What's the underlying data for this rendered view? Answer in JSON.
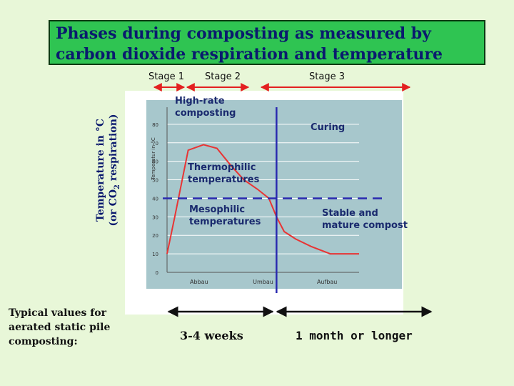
{
  "title": "Phases during composting as measured by carbon dioxide respiration and temperature",
  "stages": [
    "Stage 1",
    "Stage 2",
    "Stage 3"
  ],
  "y_axis_label": {
    "line1": "Temperature in °C",
    "line2_prefix": "(or CO",
    "line2_sub": "2",
    "line2_suffix": " respiration)"
  },
  "inner_axis_label": "Temperatur in °C",
  "annotations": {
    "high_rate": "High-rate\ncomposting",
    "curing": "Curing",
    "thermophilic": "Thermophilic\ntemperatures",
    "mesophilic": "Mesophilic\ntemperatures",
    "stable": "Stable and\nmature compost"
  },
  "footnote": "Typical values for\naerated static pile\ncomposting:",
  "durations": [
    "3-4 weeks",
    "1 month or longer"
  ],
  "chart_data": {
    "type": "line",
    "y_ticks": [
      0,
      10,
      20,
      30,
      40,
      50,
      60,
      70,
      80
    ],
    "ylim": [
      0,
      90
    ],
    "x_ticks": [
      "Abbau",
      "Umbau",
      "Aufbau"
    ],
    "xlim": [
      0,
      100
    ],
    "series": [
      {
        "x": [
          0,
          4,
          11,
          19,
          26,
          33,
          40,
          47,
          53,
          57,
          61,
          67,
          75,
          85,
          100
        ],
        "values": [
          10,
          30,
          66,
          69,
          67,
          58,
          50,
          45,
          40,
          30,
          22,
          18,
          14,
          10,
          10
        ]
      }
    ],
    "threshold": 40,
    "stage_divider_x": 57,
    "colors": {
      "curve": "#e83434",
      "grid": "#ffffff",
      "threshold": "#2a2ab0",
      "panel": "#a7c7cc"
    }
  }
}
